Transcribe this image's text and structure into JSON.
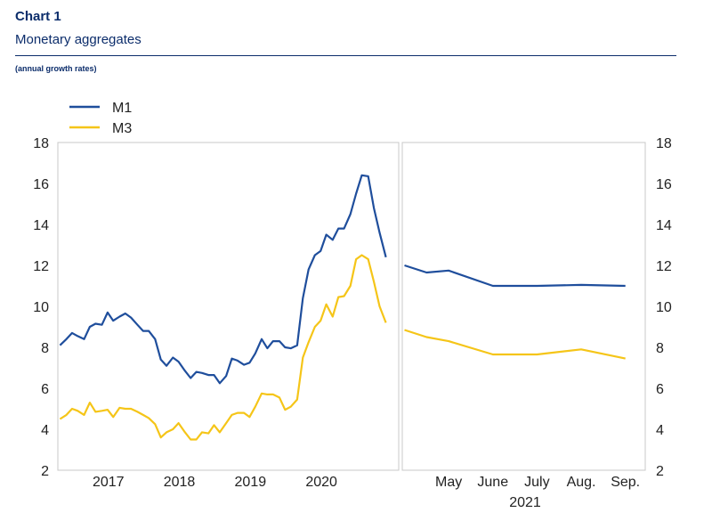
{
  "header": {
    "chart_number": "Chart 1",
    "title": "Monetary aggregates",
    "subtitle": "(annual growth rates)"
  },
  "colors": {
    "m1": "#1f4e9c",
    "m3": "#f5c518",
    "frame": "#c8c8c8",
    "heading": "#0c2d6b"
  },
  "legend": {
    "position": "top-left",
    "items": [
      "M1",
      "M3"
    ]
  },
  "chart_data": [
    {
      "type": "line",
      "panel": "left",
      "ylim": [
        2,
        18
      ],
      "yticks": [
        2,
        4,
        6,
        8,
        10,
        12,
        14,
        16,
        18
      ],
      "y_axis_side": "left",
      "grid": false,
      "xlim": [
        2016.3,
        2021.1
      ],
      "xtick_labels": [
        {
          "label": "2017",
          "at": 2017.0
        },
        {
          "label": "2018",
          "at": 2018.0
        },
        {
          "label": "2019",
          "at": 2019.0
        },
        {
          "label": "2020",
          "at": 2020.0
        }
      ],
      "series": [
        {
          "name": "M1",
          "x": [
            2016.33,
            2016.42,
            2016.5,
            2016.58,
            2016.67,
            2016.75,
            2016.83,
            2016.92,
            2017.0,
            2017.08,
            2017.17,
            2017.25,
            2017.33,
            2017.42,
            2017.5,
            2017.58,
            2017.67,
            2017.75,
            2017.83,
            2017.92,
            2018.0,
            2018.08,
            2018.17,
            2018.25,
            2018.33,
            2018.42,
            2018.5,
            2018.58,
            2018.67,
            2018.75,
            2018.83,
            2018.92,
            2019.0,
            2019.08,
            2019.17,
            2019.25,
            2019.33,
            2019.42,
            2019.5,
            2019.58,
            2019.67,
            2019.75,
            2019.83,
            2019.92,
            2020.0,
            2020.08,
            2020.17,
            2020.25,
            2020.33,
            2020.42,
            2020.5,
            2020.58,
            2020.67,
            2020.75,
            2020.83,
            2020.92
          ],
          "values": [
            8.1,
            8.4,
            8.7,
            8.55,
            8.4,
            9.0,
            9.15,
            9.1,
            9.7,
            9.3,
            9.5,
            9.65,
            9.45,
            9.1,
            8.8,
            8.8,
            8.4,
            7.4,
            7.1,
            7.5,
            7.3,
            6.9,
            6.5,
            6.8,
            6.75,
            6.65,
            6.65,
            6.25,
            6.6,
            7.45,
            7.35,
            7.15,
            7.25,
            7.7,
            8.4,
            7.95,
            8.3,
            8.3,
            8.0,
            7.95,
            8.1,
            10.4,
            11.8,
            12.5,
            12.7,
            13.5,
            13.25,
            13.8,
            13.8,
            14.5,
            15.5,
            16.4,
            16.35,
            14.8,
            13.6,
            12.4
          ]
        },
        {
          "name": "M3",
          "x": [
            2016.33,
            2016.42,
            2016.5,
            2016.58,
            2016.67,
            2016.75,
            2016.83,
            2016.92,
            2017.0,
            2017.08,
            2017.17,
            2017.25,
            2017.33,
            2017.42,
            2017.5,
            2017.58,
            2017.67,
            2017.75,
            2017.83,
            2017.92,
            2018.0,
            2018.08,
            2018.17,
            2018.25,
            2018.33,
            2018.42,
            2018.5,
            2018.58,
            2018.67,
            2018.75,
            2018.83,
            2018.92,
            2019.0,
            2019.08,
            2019.17,
            2019.25,
            2019.33,
            2019.42,
            2019.5,
            2019.58,
            2019.67,
            2019.75,
            2019.83,
            2019.92,
            2020.0,
            2020.08,
            2020.17,
            2020.25,
            2020.33,
            2020.42,
            2020.5,
            2020.58,
            2020.67,
            2020.75,
            2020.83,
            2020.92
          ],
          "values": [
            4.5,
            4.7,
            5.0,
            4.9,
            4.7,
            5.3,
            4.85,
            4.9,
            4.95,
            4.6,
            5.05,
            5.0,
            5.0,
            4.85,
            4.7,
            4.55,
            4.25,
            3.6,
            3.85,
            4.0,
            4.3,
            3.9,
            3.5,
            3.5,
            3.85,
            3.8,
            4.2,
            3.85,
            4.3,
            4.7,
            4.8,
            4.8,
            4.6,
            5.1,
            5.75,
            5.7,
            5.7,
            5.55,
            4.95,
            5.1,
            5.45,
            7.5,
            8.25,
            9.0,
            9.3,
            10.1,
            9.5,
            10.45,
            10.5,
            11.0,
            12.3,
            12.5,
            12.3,
            11.2,
            10.0,
            9.2
          ]
        }
      ]
    },
    {
      "type": "line",
      "panel": "right",
      "ylim": [
        2,
        18
      ],
      "yticks": [
        2,
        4,
        6,
        8,
        10,
        12,
        14,
        16,
        18
      ],
      "y_axis_side": "right",
      "grid": false,
      "categories": [
        "May",
        "June",
        "July",
        "Aug.",
        "Sep."
      ],
      "year_label": "2021",
      "x": [
        4.0,
        4.5,
        5.0,
        6.0,
        7.0,
        8.0,
        9.0
      ],
      "xlim": [
        3.95,
        9.45
      ],
      "xtick_positions": [
        5.0,
        6.0,
        7.0,
        8.0,
        9.0
      ],
      "series": [
        {
          "name": "M1",
          "values": [
            12.0,
            11.65,
            11.75,
            11.0,
            11.0,
            11.05,
            11.0
          ]
        },
        {
          "name": "M3",
          "values": [
            8.85,
            8.5,
            8.3,
            7.65,
            7.65,
            7.9,
            7.45
          ]
        }
      ]
    }
  ]
}
